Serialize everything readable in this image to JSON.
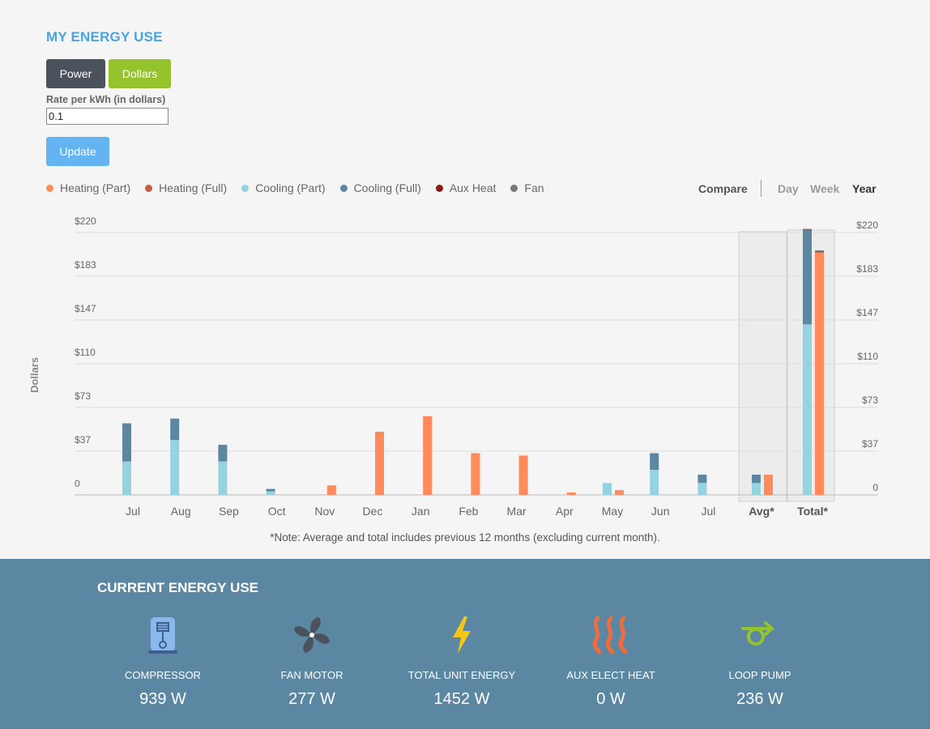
{
  "title": "MY ENERGY USE",
  "toggle": {
    "power": "Power",
    "dollars": "Dollars",
    "active": "Dollars"
  },
  "rate": {
    "label": "Rate per kWh (in dollars)",
    "value": "0.1"
  },
  "update_label": "Update",
  "legend": [
    {
      "label": "Heating (Part)",
      "color": "#ff8a5c"
    },
    {
      "label": "Heating (Full)",
      "color": "#c95a45"
    },
    {
      "label": "Cooling (Part)",
      "color": "#96d3e0"
    },
    {
      "label": "Cooling (Full)",
      "color": "#5b87a2"
    },
    {
      "label": "Aux Heat",
      "color": "#8b1a0e"
    },
    {
      "label": "Fan",
      "color": "#777777"
    }
  ],
  "controls": {
    "compare": "Compare",
    "day": "Day",
    "week": "Week",
    "year": "Year",
    "active_period": "Year"
  },
  "chart_data": {
    "type": "bar",
    "ylabel": "Dollars",
    "y_ticks": [
      "0",
      "$37",
      "$73",
      "$110",
      "$147",
      "$183",
      "$220"
    ],
    "ylim": [
      0,
      220
    ],
    "grid": true,
    "categories": [
      "Jul",
      "Aug",
      "Sep",
      "Oct",
      "Nov",
      "Dec",
      "Jan",
      "Feb",
      "Mar",
      "Apr",
      "May",
      "Jun",
      "Jul",
      "Avg*",
      "Total*"
    ],
    "cooling_series": [
      {
        "name": "Cooling (Part)",
        "values": [
          28,
          46,
          28,
          3,
          0,
          0,
          0,
          0,
          0,
          0,
          10,
          21,
          10,
          10,
          143
        ]
      },
      {
        "name": "Cooling (Full)",
        "values": [
          32,
          18,
          14,
          2,
          0,
          0,
          0,
          0,
          0,
          0,
          0,
          14,
          7,
          7,
          78
        ]
      },
      {
        "name": "Fan",
        "values": [
          0,
          0,
          0,
          0,
          0,
          0,
          0,
          0,
          0,
          0,
          0,
          0,
          0,
          0,
          2
        ]
      }
    ],
    "heating_series": [
      {
        "name": "Heating (Part)",
        "values": [
          0,
          0,
          0,
          0,
          8,
          53,
          66,
          35,
          33,
          2,
          4,
          0,
          0,
          17,
          203
        ]
      },
      {
        "name": "Fan",
        "values": [
          0,
          0,
          0,
          0,
          0,
          0,
          0,
          0,
          0,
          0,
          0,
          0,
          0,
          0,
          2
        ]
      }
    ],
    "highlighted": [
      "Avg*",
      "Total*"
    ]
  },
  "note": "*Note: Average and total includes previous 12 months (excluding current month).",
  "current": {
    "title": "CURRENT ENERGY USE",
    "items": [
      {
        "icon": "compressor-icon",
        "label": "COMPRESSOR",
        "value": "939 W"
      },
      {
        "icon": "fan-motor-icon",
        "label": "FAN MOTOR",
        "value": "277 W"
      },
      {
        "icon": "lightning-icon",
        "label": "TOTAL UNIT ENERGY",
        "value": "1452 W"
      },
      {
        "icon": "heat-waves-icon",
        "label": "AUX ELECT HEAT",
        "value": "0 W"
      },
      {
        "icon": "loop-pump-icon",
        "label": "LOOP PUMP",
        "value": "236 W"
      }
    ]
  }
}
